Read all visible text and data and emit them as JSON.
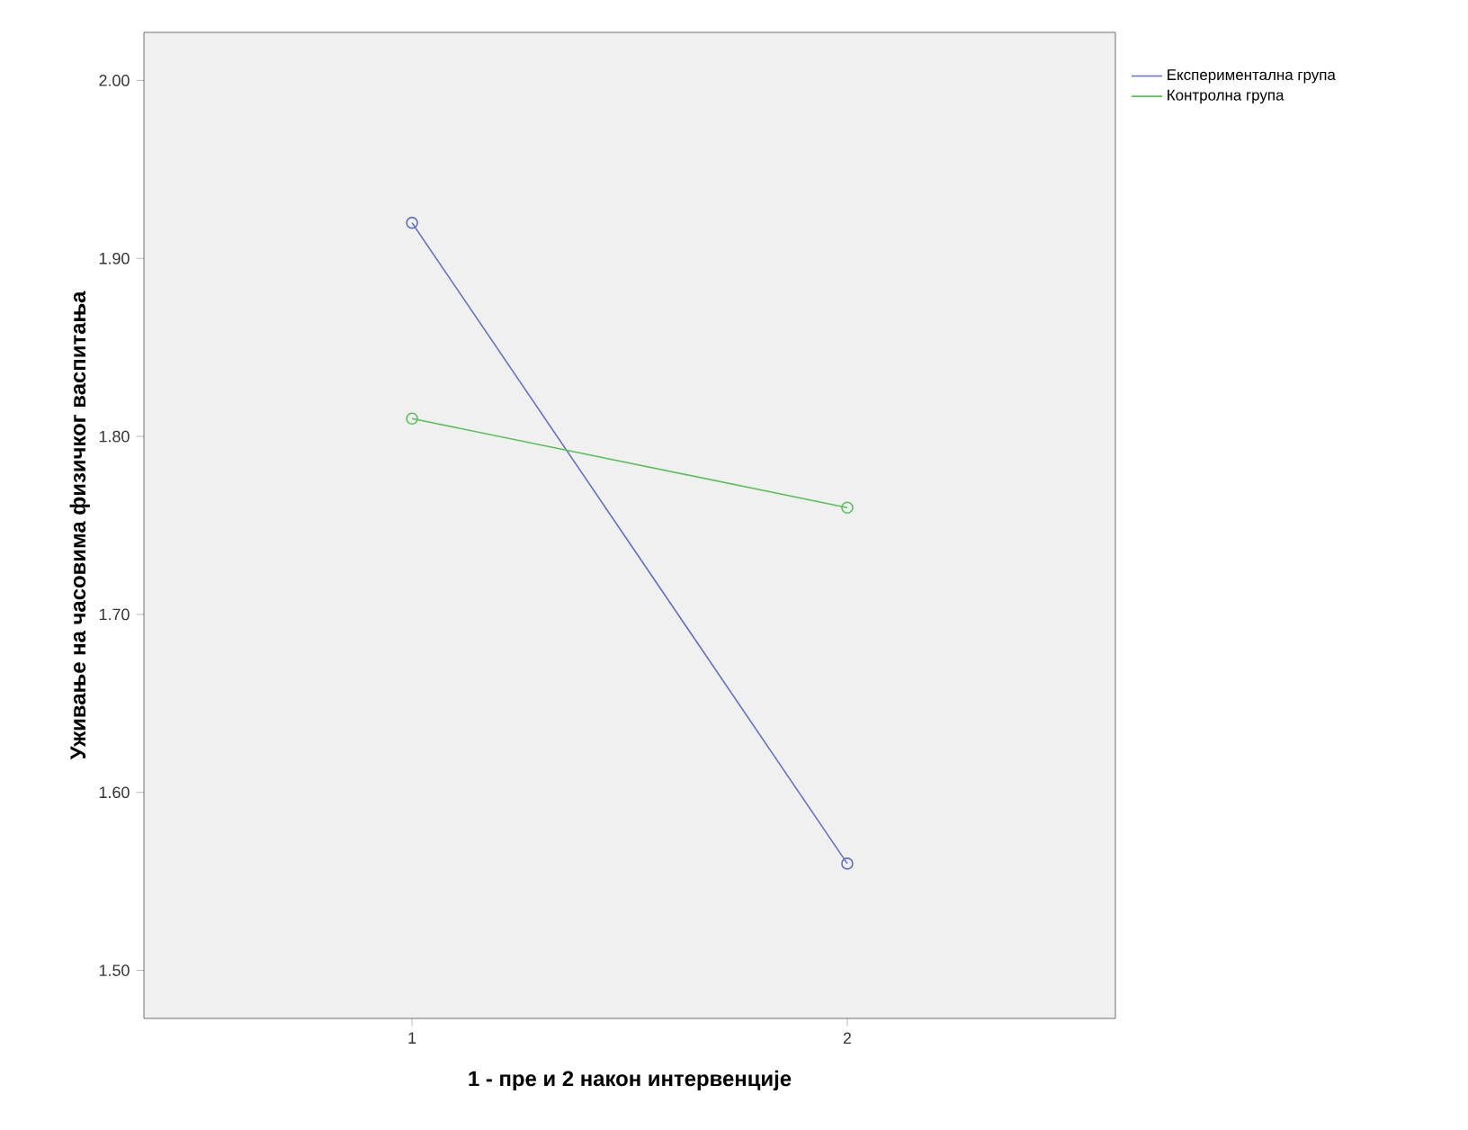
{
  "chart_data": {
    "type": "line",
    "xlabel": "1 - пре и 2 након интервенције",
    "ylabel": "Уживање на часовима физичког васпитања",
    "categories": [
      "1",
      "2"
    ],
    "series": [
      {
        "name": "Експериментална група",
        "color": "#6272c0",
        "values": [
          1.92,
          1.56
        ]
      },
      {
        "name": "Контролна група",
        "color": "#5cbf5c",
        "values": [
          1.81,
          1.76
        ]
      }
    ],
    "ylim": [
      1.473,
      2.027
    ],
    "yticks": [
      {
        "value": 1.5,
        "label": "1.50"
      },
      {
        "value": 1.6,
        "label": "1.60"
      },
      {
        "value": 1.7,
        "label": "1.70"
      },
      {
        "value": 1.8,
        "label": "1.80"
      },
      {
        "value": 1.9,
        "label": "1.90"
      },
      {
        "value": 2.0,
        "label": "2.00"
      }
    ],
    "grid": false,
    "legend": "top right",
    "marker": "circle",
    "line_style": "solid"
  }
}
